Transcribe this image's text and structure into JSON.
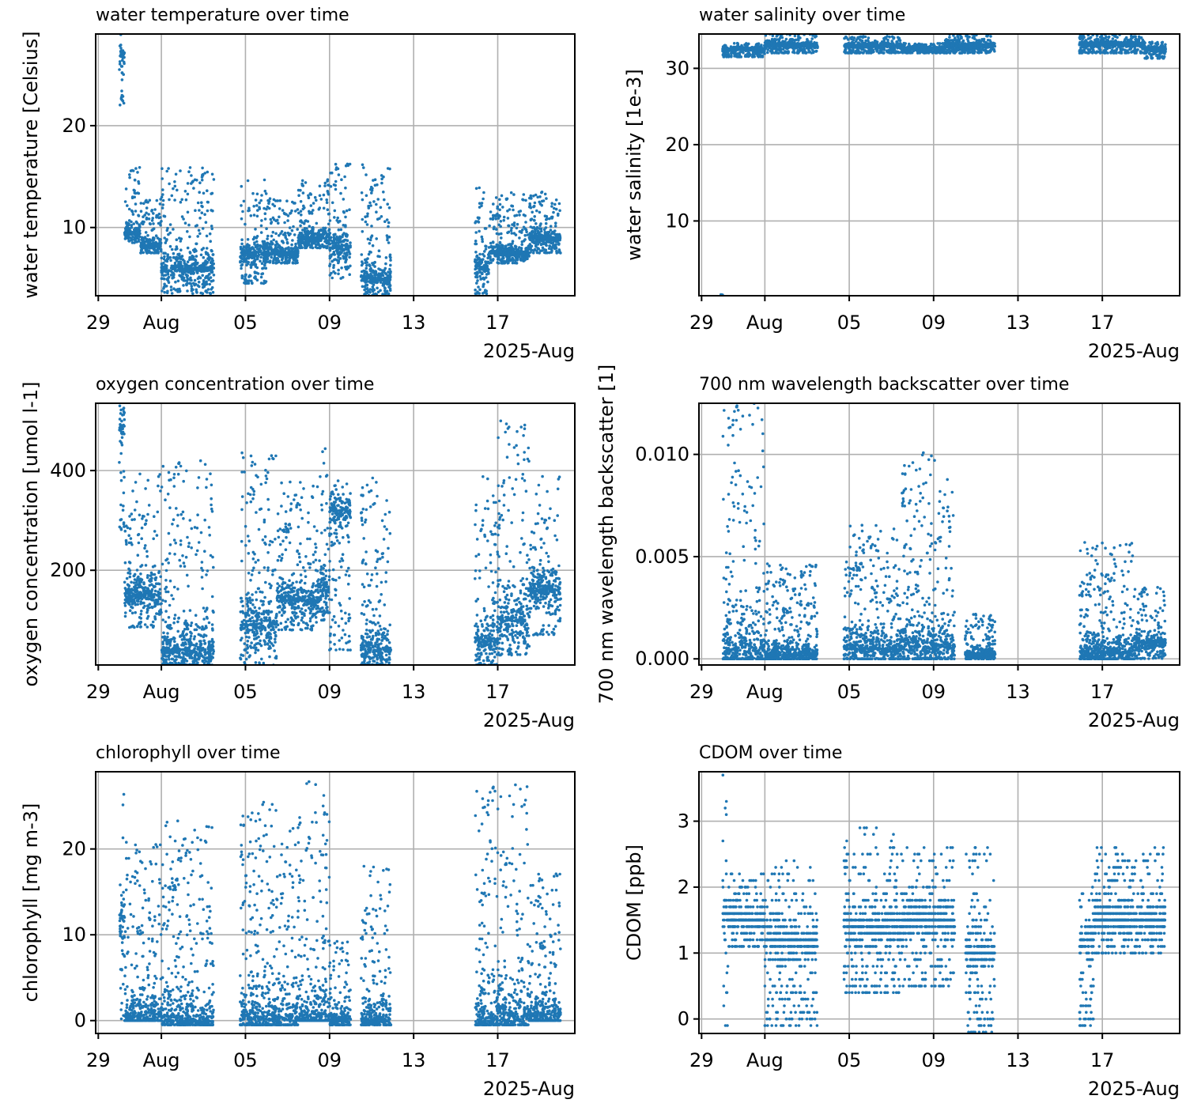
{
  "figure": {
    "point_color": "#1f77b4",
    "grid_color": "#b0b0b0"
  },
  "chart_data": [
    {
      "id": "temperature",
      "type": "scatter",
      "title": "water temperature over time",
      "xlabel": "",
      "ylabel": "water temperature [Celsius]",
      "x_offset_label": "2025-Aug",
      "xlim": [
        "2025-07-28T21:00",
        "2025-08-20T16:00"
      ],
      "ylim": [
        3.3,
        29.0
      ],
      "yticks": [
        10,
        20
      ],
      "ytick_labels": [
        "10",
        "20"
      ],
      "xticks": [
        "2025-07-29",
        "2025-08-01",
        "2025-08-05",
        "2025-08-09",
        "2025-08-13",
        "2025-08-17"
      ],
      "xtick_labels": [
        "29",
        "Aug",
        "05",
        "09",
        "13",
        "17"
      ],
      "grid": true,
      "series": [
        {
          "name": "water temperature",
          "segments": [
            {
              "t0": "2025-07-30T00:00",
              "t1": "2025-07-30T06:00",
              "low": 22.0,
              "high": 29.0,
              "mode": 27
            },
            {
              "t0": "2025-07-30T06:00",
              "t1": "2025-07-31T00:00",
              "low": 8.5,
              "high": 16.0,
              "mode": 9.5
            },
            {
              "t0": "2025-07-31T00:00",
              "t1": "2025-08-01T00:00",
              "low": 7.5,
              "high": 13.0,
              "mode": 8.3
            },
            {
              "t0": "2025-08-01T00:00",
              "t1": "2025-08-03T12:00",
              "low": 3.5,
              "high": 16.0,
              "mode": 6.0
            },
            {
              "t0": "2025-08-04T18:00",
              "t1": "2025-08-06T00:00",
              "low": 4.5,
              "high": 14.8,
              "mode": 7.5
            },
            {
              "t0": "2025-08-06T00:00",
              "t1": "2025-08-07T12:00",
              "low": 6.5,
              "high": 13.0,
              "mode": 7.5
            },
            {
              "t0": "2025-08-07T12:00",
              "t1": "2025-08-09T00:00",
              "low": 8.0,
              "high": 15.0,
              "mode": 9.0
            },
            {
              "t0": "2025-08-09T00:00",
              "t1": "2025-08-10T00:00",
              "low": 5.0,
              "high": 16.5,
              "mode": 8.0
            },
            {
              "t0": "2025-08-10T12:00",
              "t1": "2025-08-11T22:00",
              "low": 3.3,
              "high": 16.3,
              "mode": 5.0
            },
            {
              "t0": "2025-08-15T22:00",
              "t1": "2025-08-16T14:00",
              "low": 3.5,
              "high": 14.0,
              "mode": 6.0
            },
            {
              "t0": "2025-08-16T14:00",
              "t1": "2025-08-18T12:00",
              "low": 6.5,
              "high": 13.5,
              "mode": 7.5
            },
            {
              "t0": "2025-08-18T12:00",
              "t1": "2025-08-20T00:00",
              "low": 7.5,
              "high": 13.5,
              "mode": 9.0
            }
          ]
        }
      ]
    },
    {
      "id": "salinity",
      "type": "scatter",
      "title": "water salinity over time",
      "xlabel": "",
      "ylabel": "water salinity [1e-3]",
      "x_offset_label": "2025-Aug",
      "xlim": [
        "2025-07-28T21:00",
        "2025-08-20T16:00"
      ],
      "ylim": [
        0.2,
        34.5
      ],
      "yticks": [
        10,
        20,
        30
      ],
      "ytick_labels": [
        "10",
        "20",
        "30"
      ],
      "xticks": [
        "2025-07-29",
        "2025-08-01",
        "2025-08-05",
        "2025-08-09",
        "2025-08-13",
        "2025-08-17"
      ],
      "xtick_labels": [
        "29",
        "Aug",
        "05",
        "09",
        "13",
        "17"
      ],
      "grid": true,
      "series": [
        {
          "name": "water salinity",
          "segments": [
            {
              "t0": "2025-07-29T22:00",
              "t1": "2025-07-30T00:00",
              "low": 0.2,
              "high": 0.4,
              "mode": 0.3
            },
            {
              "t0": "2025-07-30T00:00",
              "t1": "2025-08-01T00:00",
              "low": 31.5,
              "high": 33.3,
              "mode": 32.5
            },
            {
              "t0": "2025-08-01T00:00",
              "t1": "2025-08-03T12:00",
              "low": 32.0,
              "high": 34.5,
              "mode": 33.0
            },
            {
              "t0": "2025-08-04T18:00",
              "t1": "2025-08-07T12:00",
              "low": 32.0,
              "high": 34.2,
              "mode": 33.0
            },
            {
              "t0": "2025-08-07T12:00",
              "t1": "2025-08-09T12:00",
              "low": 32.0,
              "high": 33.3,
              "mode": 32.6
            },
            {
              "t0": "2025-08-09T12:00",
              "t1": "2025-08-11T22:00",
              "low": 32.0,
              "high": 34.5,
              "mode": 33.0
            },
            {
              "t0": "2025-08-15T22:00",
              "t1": "2025-08-19T00:00",
              "low": 32.0,
              "high": 34.5,
              "mode": 33.2
            },
            {
              "t0": "2025-08-19T00:00",
              "t1": "2025-08-20T00:00",
              "low": 31.3,
              "high": 33.5,
              "mode": 32.5
            }
          ]
        }
      ]
    },
    {
      "id": "oxygen",
      "type": "scatter",
      "title": "oxygen concentration over time",
      "xlabel": "",
      "ylabel": "oxygen concentration [umol l-1]",
      "x_offset_label": "2025-Aug",
      "xlim": [
        "2025-07-28T21:00",
        "2025-08-20T16:00"
      ],
      "ylim": [
        10,
        535
      ],
      "yticks": [
        200,
        400
      ],
      "ytick_labels": [
        "200",
        "400"
      ],
      "xticks": [
        "2025-07-29",
        "2025-08-01",
        "2025-08-05",
        "2025-08-09",
        "2025-08-13",
        "2025-08-17"
      ],
      "xtick_labels": [
        "29",
        "Aug",
        "05",
        "09",
        "13",
        "17"
      ],
      "grid": true,
      "series": [
        {
          "name": "oxygen concentration",
          "segments": [
            {
              "t0": "2025-07-30T00:00",
              "t1": "2025-07-30T06:00",
              "low": 280,
              "high": 530,
              "mode": 490
            },
            {
              "t0": "2025-07-30T06:00",
              "t1": "2025-08-01T00:00",
              "low": 85,
              "high": 395,
              "mode": 150
            },
            {
              "t0": "2025-08-01T00:00",
              "t1": "2025-08-03T12:00",
              "low": 10,
              "high": 420,
              "mode": 40
            },
            {
              "t0": "2025-08-04T18:00",
              "t1": "2025-08-06T12:00",
              "low": 10,
              "high": 440,
              "mode": 90
            },
            {
              "t0": "2025-08-06T12:00",
              "t1": "2025-08-08T12:00",
              "low": 80,
              "high": 380,
              "mode": 140
            },
            {
              "t0": "2025-08-08T12:00",
              "t1": "2025-08-09T00:00",
              "low": 100,
              "high": 530,
              "mode": 160
            },
            {
              "t0": "2025-08-09T00:00",
              "t1": "2025-08-10T00:00",
              "low": 40,
              "high": 380,
              "mode": 320
            },
            {
              "t0": "2025-08-10T12:00",
              "t1": "2025-08-11T22:00",
              "low": 10,
              "high": 390,
              "mode": 40
            },
            {
              "t0": "2025-08-15T22:00",
              "t1": "2025-08-17T00:00",
              "low": 10,
              "high": 390,
              "mode": 60
            },
            {
              "t0": "2025-08-17T00:00",
              "t1": "2025-08-18T12:00",
              "low": 30,
              "high": 500,
              "mode": 100
            },
            {
              "t0": "2025-08-18T12:00",
              "t1": "2025-08-20T00:00",
              "low": 70,
              "high": 390,
              "mode": 160
            }
          ]
        }
      ]
    },
    {
      "id": "backscatter",
      "type": "scatter",
      "title": "700 nm wavelength backscatter over time",
      "xlabel": "",
      "ylabel": "700 nm wavelength backscatter [1]",
      "x_offset_label": "2025-Aug",
      "xlim": [
        "2025-07-28T21:00",
        "2025-08-20T16:00"
      ],
      "ylim": [
        -0.0003,
        0.0125
      ],
      "yticks": [
        0.0,
        0.005,
        0.01
      ],
      "ytick_labels": [
        "0.000",
        "0.005",
        "0.010"
      ],
      "xticks": [
        "2025-07-29",
        "2025-08-01",
        "2025-08-05",
        "2025-08-09",
        "2025-08-13",
        "2025-08-17"
      ],
      "xtick_labels": [
        "29",
        "Aug",
        "05",
        "09",
        "13",
        "17"
      ],
      "grid": true,
      "series": [
        {
          "name": "700 nm backscatter",
          "segments": [
            {
              "t0": "2025-07-30T00:00",
              "t1": "2025-08-01T00:00",
              "low": 0.0,
              "high": 0.0125,
              "mode": 0.0004
            },
            {
              "t0": "2025-08-01T00:00",
              "t1": "2025-08-03T12:00",
              "low": 0.0,
              "high": 0.0047,
              "mode": 0.0002
            },
            {
              "t0": "2025-08-04T18:00",
              "t1": "2025-08-07T12:00",
              "low": 0.0,
              "high": 0.0066,
              "mode": 0.0005
            },
            {
              "t0": "2025-08-07T12:00",
              "t1": "2025-08-10T00:00",
              "low": 0.0,
              "high": 0.0101,
              "mode": 0.0006
            },
            {
              "t0": "2025-08-10T12:00",
              "t1": "2025-08-11T22:00",
              "low": 0.0,
              "high": 0.0022,
              "mode": 0.0002
            },
            {
              "t0": "2025-08-15T22:00",
              "t1": "2025-08-18T12:00",
              "low": 0.0,
              "high": 0.0057,
              "mode": 0.0003
            },
            {
              "t0": "2025-08-18T12:00",
              "t1": "2025-08-20T00:00",
              "low": 0.0,
              "high": 0.0035,
              "mode": 0.0008
            }
          ]
        }
      ]
    },
    {
      "id": "chlorophyll",
      "type": "scatter",
      "title": "chlorophyll over time",
      "xlabel": "",
      "ylabel": "chlorophyll [mg m-3]",
      "x_offset_label": "2025-Aug",
      "xlim": [
        "2025-07-28T21:00",
        "2025-08-20T16:00"
      ],
      "ylim": [
        -1.5,
        29.0
      ],
      "yticks": [
        0,
        10,
        20
      ],
      "ytick_labels": [
        "0",
        "10",
        "20"
      ],
      "xticks": [
        "2025-07-29",
        "2025-08-01",
        "2025-08-05",
        "2025-08-09",
        "2025-08-13",
        "2025-08-17"
      ],
      "xtick_labels": [
        "29",
        "Aug",
        "05",
        "09",
        "13",
        "17"
      ],
      "grid": true,
      "series": [
        {
          "name": "chlorophyll",
          "segments": [
            {
              "t0": "2025-07-30T00:00",
              "t1": "2025-07-30T06:00",
              "low": 0.0,
              "high": 29.0,
              "mode": 12
            },
            {
              "t0": "2025-07-30T06:00",
              "t1": "2025-08-01T00:00",
              "low": 0.0,
              "high": 21.0,
              "mode": 0.5
            },
            {
              "t0": "2025-08-01T00:00",
              "t1": "2025-08-03T12:00",
              "low": -0.5,
              "high": 23.5,
              "mode": 0.0
            },
            {
              "t0": "2025-08-04T18:00",
              "t1": "2025-08-07T12:00",
              "low": -0.5,
              "high": 25.5,
              "mode": 0.2
            },
            {
              "t0": "2025-08-07T12:00",
              "t1": "2025-08-09T00:00",
              "low": 0.0,
              "high": 28.0,
              "mode": 0.5
            },
            {
              "t0": "2025-08-09T00:00",
              "t1": "2025-08-10T00:00",
              "low": -0.5,
              "high": 9.5,
              "mode": 0.0
            },
            {
              "t0": "2025-08-10T12:00",
              "t1": "2025-08-11T22:00",
              "low": -0.5,
              "high": 18.0,
              "mode": 0.0
            },
            {
              "t0": "2025-08-15T22:00",
              "t1": "2025-08-18T12:00",
              "low": -0.5,
              "high": 27.5,
              "mode": 0.2
            },
            {
              "t0": "2025-08-18T12:00",
              "t1": "2025-08-20T00:00",
              "low": 0.0,
              "high": 17.5,
              "mode": 0.6
            }
          ]
        }
      ]
    },
    {
      "id": "cdom",
      "type": "scatter",
      "title": "CDOM over time",
      "xlabel": "",
      "ylabel": "CDOM [ppb]",
      "x_offset_label": "2025-Aug",
      "xlim": [
        "2025-07-28T21:00",
        "2025-08-20T16:00"
      ],
      "ylim": [
        -0.22,
        3.75
      ],
      "yticks": [
        0,
        1,
        2,
        3
      ],
      "ytick_labels": [
        "0",
        "1",
        "2",
        "3"
      ],
      "xticks": [
        "2025-07-29",
        "2025-08-01",
        "2025-08-05",
        "2025-08-09",
        "2025-08-13",
        "2025-08-17"
      ],
      "xtick_labels": [
        "29",
        "Aug",
        "05",
        "09",
        "13",
        "17"
      ],
      "grid": true,
      "quantization": 0.1,
      "series": [
        {
          "name": "CDOM",
          "segments": [
            {
              "t0": "2025-07-30T00:00",
              "t1": "2025-07-30T06:00",
              "low": -0.1,
              "high": 3.7,
              "mode": 1.6
            },
            {
              "t0": "2025-07-30T06:00",
              "t1": "2025-08-01T00:00",
              "low": 1.1,
              "high": 2.2,
              "mode": 1.5
            },
            {
              "t0": "2025-08-01T00:00",
              "t1": "2025-08-03T12:00",
              "low": -0.1,
              "high": 2.4,
              "mode": 1.2
            },
            {
              "t0": "2025-08-04T18:00",
              "t1": "2025-08-07T12:00",
              "low": 0.4,
              "high": 2.9,
              "mode": 1.4
            },
            {
              "t0": "2025-08-07T12:00",
              "t1": "2025-08-10T00:00",
              "low": 0.5,
              "high": 2.6,
              "mode": 1.5
            },
            {
              "t0": "2025-08-10T12:00",
              "t1": "2025-08-11T22:00",
              "low": -0.2,
              "high": 2.6,
              "mode": 1.0
            },
            {
              "t0": "2025-08-15T22:00",
              "t1": "2025-08-16T14:00",
              "low": -0.1,
              "high": 2.1,
              "mode": 1.2
            },
            {
              "t0": "2025-08-16T14:00",
              "t1": "2025-08-20T00:00",
              "low": 1.0,
              "high": 2.6,
              "mode": 1.5
            }
          ]
        }
      ]
    }
  ]
}
